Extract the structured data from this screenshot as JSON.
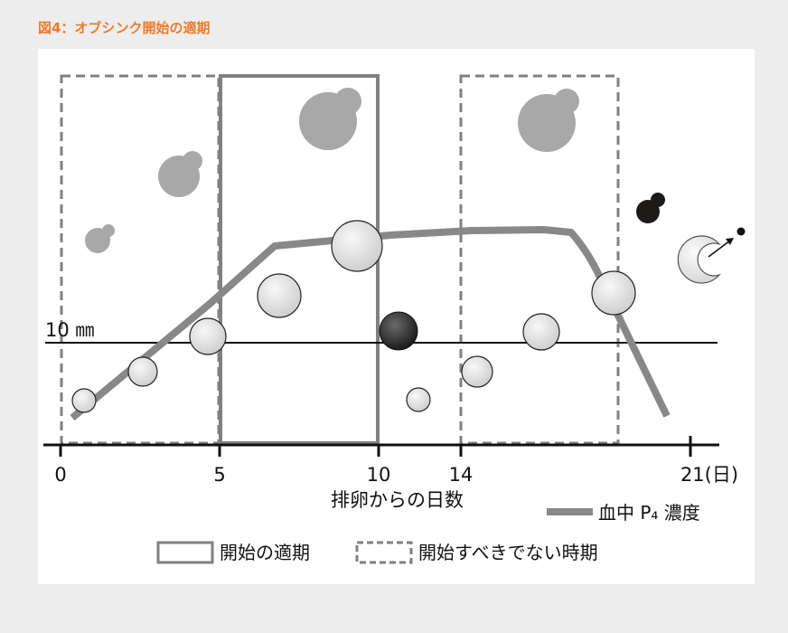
{
  "figure": {
    "title": "図4：オブシンク開始の適期"
  },
  "diagram": {
    "threshold_label": "10 ㎜",
    "x_ticks": [
      "0",
      "5",
      "10",
      "14",
      "21(日)"
    ],
    "x_axis_title": "排卵からの日数",
    "p4_legend_label": "血中 P₄ 濃度",
    "legend": {
      "optimal": "開始の適期",
      "avoid": "開始すべきでない時期"
    },
    "colors": {
      "follicle": "#e0e0e0",
      "corpus_luteum": "#a8a8a8",
      "ovulatory_follicle": "#3a3a3a",
      "regressing_cl": "#1e1a1a",
      "p4_curve": "#888888",
      "box": "#808080",
      "title": "#f07a2a"
    }
  }
}
